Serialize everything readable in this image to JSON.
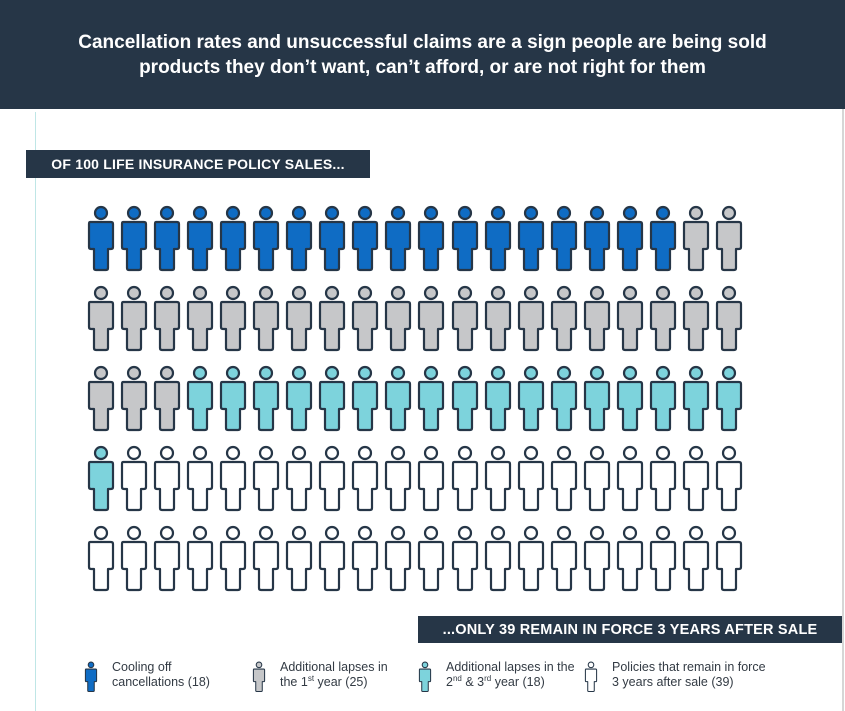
{
  "header": {
    "title": "Cancellation rates and unsuccessful claims are a sign people are being sold products they don’t want, can’t afford, or are not right for them"
  },
  "banners": {
    "top": "OF 100 LIFE INSURANCE POLICY SALES...",
    "bottom": "...ONLY 39 REMAIN IN FORCE 3 YEARS AFTER SALE"
  },
  "colors": {
    "background": "#ffffff",
    "header_bg": "#263647",
    "outline": "#263647",
    "cooling_off": "#0f6cc4",
    "lapse_year1": "#c6c7c9",
    "lapse_year2_3": "#7dd3dc",
    "remain": "#ffffff"
  },
  "legend": [
    {
      "key": "cooling_off",
      "line1": "Cooling off",
      "line2": "cancellations (18)"
    },
    {
      "key": "lapse_year1",
      "line1": "Additional lapses in",
      "line2_pre": "the 1",
      "line2_sup": "st",
      "line2_post": " year (25)"
    },
    {
      "key": "lapse_year2_3",
      "line1": "Additional lapses in the",
      "line2_pre": "2",
      "line2_sup": "nd",
      "line2_mid": " & 3",
      "line2_sup2": "rd",
      "line2_post": " year (18)"
    },
    {
      "key": "remain",
      "line1": "Policies that remain in force",
      "line2": "3 years after sale (39)"
    }
  ],
  "chart_data": {
    "type": "pictogram",
    "title": "Of 100 life insurance policy sales... only 39 remain in force 3 years after sale",
    "total": 100,
    "grid": {
      "rows": 5,
      "columns": 20
    },
    "categories": [
      "Cooling off cancellations",
      "Additional lapses in the 1st year",
      "Additional lapses in the 2nd & 3rd year",
      "Policies that remain in force 3 years after sale"
    ],
    "values": [
      18,
      25,
      18,
      39
    ],
    "fill_order": "row-major, left to right, top to bottom"
  }
}
